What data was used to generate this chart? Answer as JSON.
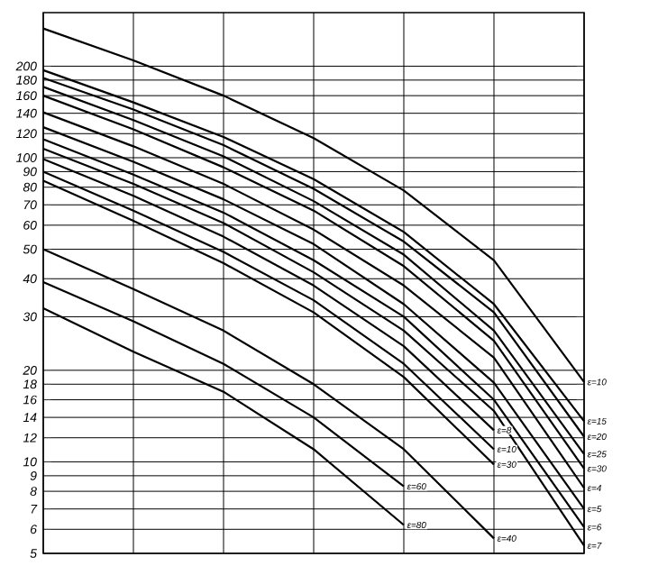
{
  "chart_data": {
    "type": "line",
    "log": "y",
    "grid": true,
    "tick_labels": "y",
    "marker": "none",
    "categories": [
      null,
      null,
      null,
      null,
      null,
      null,
      null
    ],
    "ylim": [
      5,
      300
    ],
    "yticks": [
      5,
      6,
      7,
      8,
      9,
      10,
      12,
      14,
      16,
      18,
      20,
      30,
      40,
      50,
      60,
      70,
      80,
      90,
      100,
      120,
      140,
      160,
      180,
      200
    ],
    "series": [
      {
        "name": "ε=10",
        "color": "#000000",
        "values": [
          266,
          209,
          160,
          116,
          78,
          46,
          18.3
        ]
      },
      {
        "name": "ε=15",
        "color": "#000000",
        "values": [
          194,
          152,
          117,
          85,
          57,
          33,
          13.6
        ]
      },
      {
        "name": "ε=20",
        "color": "#000000",
        "values": [
          183,
          144,
          110,
          79,
          53,
          31,
          12.1
        ]
      },
      {
        "name": "ε=25",
        "color": "#000000",
        "values": [
          171,
          133,
          101,
          72,
          48,
          27,
          10.6
        ]
      },
      {
        "name": "ε=30",
        "color": "#000000",
        "values": [
          160,
          124,
          93,
          67,
          44,
          25,
          9.5
        ]
      },
      {
        "name": "ε=4",
        "color": "#000000",
        "values": [
          141,
          109,
          82,
          58,
          38,
          22,
          8.2
        ]
      },
      {
        "name": "ε=5",
        "color": "#000000",
        "values": [
          126,
          97,
          73,
          52,
          33,
          18.2,
          7.0
        ]
      },
      {
        "name": "ε=6",
        "color": "#000000",
        "values": [
          115,
          88,
          66,
          46,
          30,
          16,
          6.1
        ]
      },
      {
        "name": "ε=7",
        "color": "#000000",
        "values": [
          107,
          82,
          61,
          42,
          27,
          14.7,
          5.3
        ]
      },
      {
        "name": "ε=8",
        "color": "#000000",
        "values": [
          99,
          75,
          55,
          38,
          24,
          12.7,
          null
        ]
      },
      {
        "name": "ε=10",
        "color": "#000000",
        "values": [
          90,
          67,
          49,
          34,
          21,
          11,
          null
        ]
      },
      {
        "name": "ε=30",
        "color": "#000000",
        "values": [
          84,
          62,
          45,
          31,
          19,
          9.8,
          null
        ]
      },
      {
        "name": "ε=40",
        "color": "#000000",
        "values": [
          50,
          37,
          27,
          18,
          11,
          5.6,
          null
        ]
      },
      {
        "name": "ε=60",
        "color": "#000000",
        "values": [
          39,
          29,
          21,
          14,
          8.3,
          null,
          null
        ]
      },
      {
        "name": "ε=80",
        "color": "#000000",
        "values": [
          32,
          23,
          17,
          11,
          6.2,
          null,
          null
        ]
      }
    ]
  }
}
